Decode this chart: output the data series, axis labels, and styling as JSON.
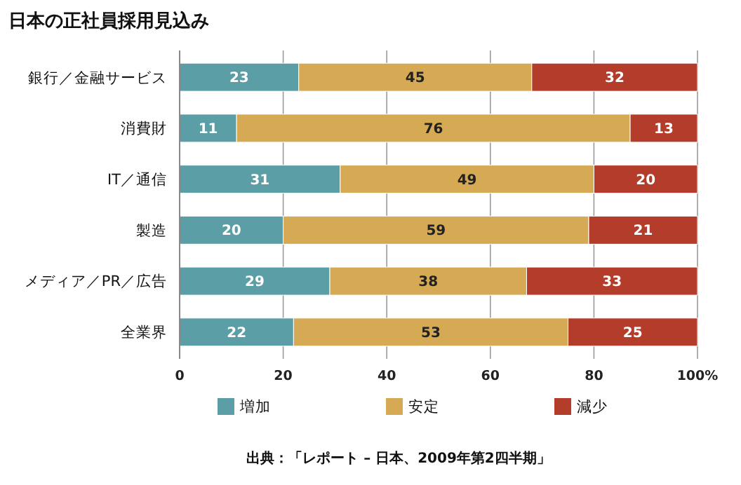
{
  "chart_data": {
    "type": "bar",
    "title": "日本の正社員採用見込み",
    "orientation": "horizontal",
    "stacked": true,
    "categories": [
      "銀行／金融サービス",
      "消費財",
      "IT／通信",
      "製造",
      "メディア／PR／広告",
      "全業界"
    ],
    "series": [
      {
        "name": "増加",
        "color": "#5b9ea6",
        "values": [
          23,
          11,
          31,
          20,
          29,
          22
        ]
      },
      {
        "name": "安定",
        "color": "#d6a955",
        "values": [
          45,
          76,
          49,
          59,
          38,
          53
        ]
      },
      {
        "name": "減少",
        "color": "#b43c2b",
        "values": [
          32,
          13,
          20,
          21,
          33,
          25
        ]
      }
    ],
    "xlim": [
      0,
      100
    ],
    "xticks": [
      0,
      20,
      40,
      60,
      80,
      {
        "value": 100,
        "label": "100%"
      }
    ],
    "grid": "x",
    "legend": "bottom",
    "data_labels": true,
    "annotations": [
      "出典：「レポート – 日本、2009年第2四半期」"
    ]
  }
}
